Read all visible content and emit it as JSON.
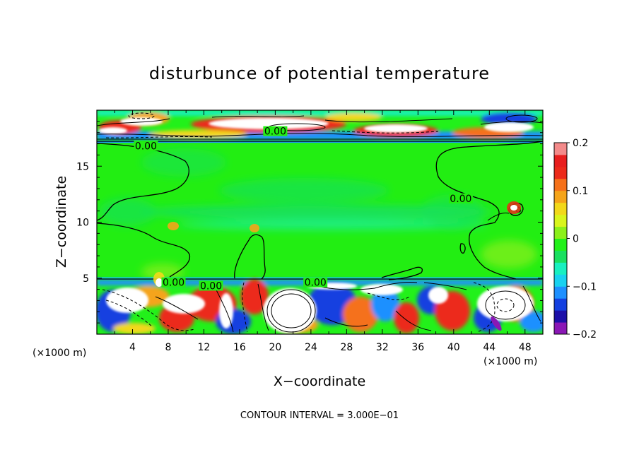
{
  "chart_data": {
    "type": "heatmap",
    "title": "disturbunce of potential temperature",
    "xlabel": "X−coordinate",
    "ylabel": "Z−coordinate",
    "x_unit": "(×1000 m)",
    "x_unit_right": "(×1000 m)",
    "xlim": [
      0,
      50
    ],
    "ylim": [
      0,
      20
    ],
    "x_ticks": [
      4,
      8,
      12,
      16,
      20,
      24,
      28,
      32,
      36,
      40,
      44,
      48
    ],
    "y_ticks": [
      5,
      10,
      15
    ],
    "contour_interval_text": "CONTOUR INTERVAL = 3.000E−01",
    "contour_labels": [
      {
        "text": "0.00",
        "x": 5.5,
        "y": 16.7
      },
      {
        "text": "0.00",
        "x": 20.0,
        "y": 18.0
      },
      {
        "text": "0.00",
        "x": 40.8,
        "y": 12.0
      },
      {
        "text": "0.00",
        "x": 12.8,
        "y": 4.2
      },
      {
        "text": "0.00",
        "x": 24.5,
        "y": 4.5
      },
      {
        "text": "0.00",
        "x": 8.6,
        "y": 4.5
      }
    ],
    "colorbar": {
      "min": -0.2,
      "max": 0.2,
      "ticks": [
        "0.2",
        "0.1",
        "0",
        "−0.1",
        "−0.2"
      ],
      "tick_values": [
        0.2,
        0.1,
        0,
        -0.1,
        -0.2
      ],
      "colors": [
        "#8a17b5",
        "#1c0fa8",
        "#1440e0",
        "#1e90ff",
        "#18d2f0",
        "#18f0c0",
        "#19e060",
        "#22f11a",
        "#8cf01a",
        "#d9f51c",
        "#f2d81a",
        "#f5a41a",
        "#f5711a",
        "#ec2a1a",
        "#e81e1e",
        "#f38a8a"
      ]
    }
  }
}
